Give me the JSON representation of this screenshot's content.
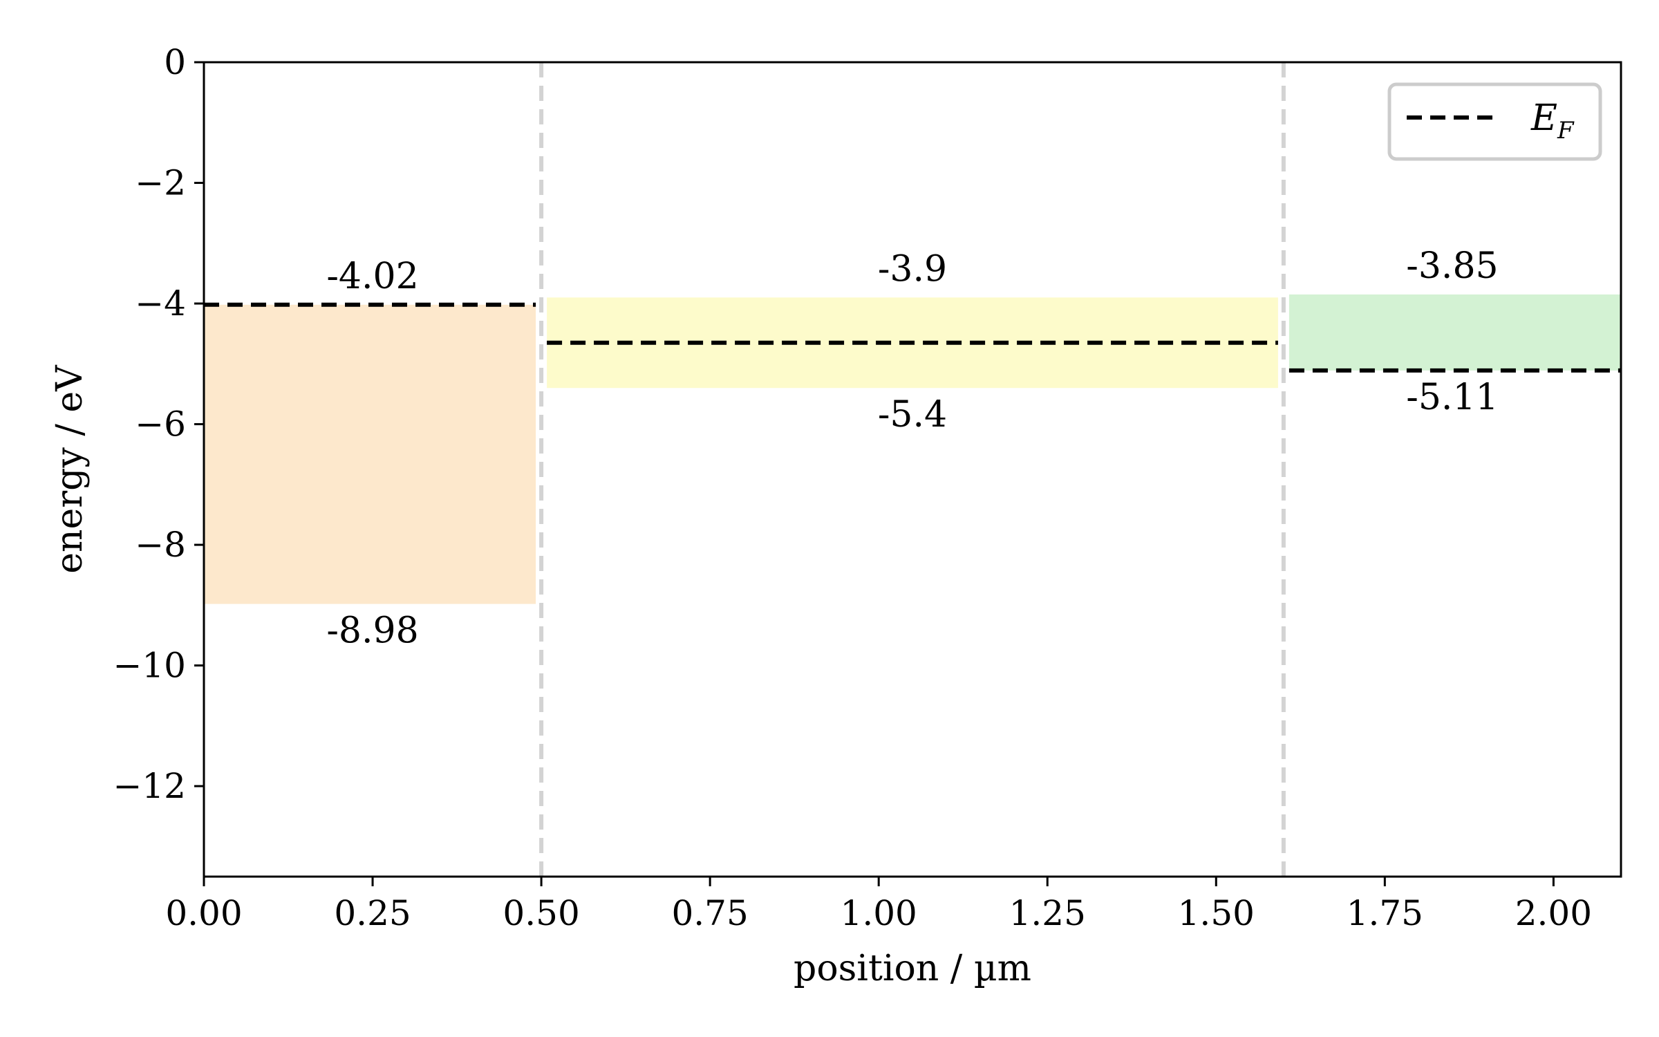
{
  "chart_data": {
    "type": "bar",
    "xlabel": "position / µm",
    "ylabel": "energy / eV",
    "xlim": [
      0,
      2.1
    ],
    "ylim": [
      -13.5,
      0
    ],
    "x_ticks": [
      0.0,
      0.25,
      0.5,
      0.75,
      1.0,
      1.25,
      1.5,
      1.75,
      2.0
    ],
    "x_tick_labels": [
      "0.00",
      "0.25",
      "0.50",
      "0.75",
      "1.00",
      "1.25",
      "1.50",
      "1.75",
      "2.00"
    ],
    "y_ticks": [
      0,
      -2,
      -4,
      -6,
      -8,
      -10,
      -12
    ],
    "y_tick_labels": [
      "0",
      "−2",
      "−4",
      "−6",
      "−8",
      "−10",
      "−12"
    ],
    "grid": false,
    "layers": [
      {
        "x_start": 0.0,
        "x_end": 0.5,
        "top": -4.02,
        "bottom": -8.98,
        "fermi_level": -4.02,
        "top_label": "-4.02",
        "bottom_label": "-8.98",
        "color": "#fde8cc"
      },
      {
        "x_start": 0.5,
        "x_end": 1.6,
        "top": -3.9,
        "bottom": -5.4,
        "fermi_level": -4.65,
        "top_label": "-3.9",
        "bottom_label": "-5.4",
        "color": "#fdfbcb"
      },
      {
        "x_start": 1.6,
        "x_end": 2.1,
        "top": -3.85,
        "bottom": -5.11,
        "fermi_level": -5.11,
        "top_label": "-3.85",
        "bottom_label": "-5.11",
        "color": "#d3f2d3"
      }
    ],
    "interfaces": [
      0.5,
      1.6
    ],
    "interface_color": "#d3d3d3",
    "fermi_color": "#000000",
    "legend": {
      "position": "top-right",
      "entries": [
        {
          "label": "E",
          "subscript": "F",
          "style": "dashed"
        }
      ]
    }
  }
}
